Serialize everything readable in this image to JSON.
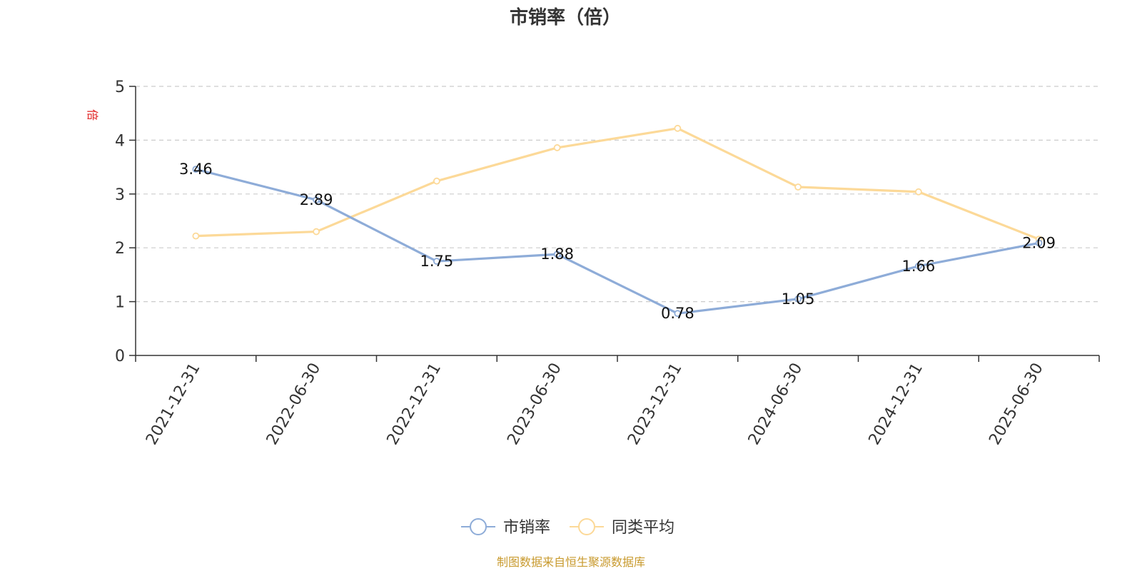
{
  "chart_data": {
    "type": "line",
    "title": "市销率（倍）",
    "ylabel": "倍",
    "xlabel": "",
    "ylim": [
      0,
      5
    ],
    "yticks": [
      0,
      1,
      2,
      3,
      4,
      5
    ],
    "grid": true,
    "legend_position": "bottom",
    "categories": [
      "2021-12-31",
      "2022-06-30",
      "2022-12-31",
      "2023-06-30",
      "2023-12-31",
      "2024-06-30",
      "2024-12-31",
      "2025-06-30"
    ],
    "series": [
      {
        "name": "市销率",
        "color": "#8eacd8",
        "values": [
          3.46,
          2.89,
          1.75,
          1.88,
          0.78,
          1.05,
          1.66,
          2.09
        ],
        "labels_shown": true
      },
      {
        "name": "同类平均",
        "color": "#fcd998",
        "values": [
          2.22,
          2.3,
          3.24,
          3.86,
          4.22,
          3.13,
          3.04,
          2.16
        ],
        "labels_shown": false
      }
    ]
  },
  "colors": {
    "axis": "#333333",
    "grid": "#cccccc",
    "unit": "#e02020",
    "source": "#c89a2e"
  },
  "footer": {
    "source_text": "制图数据来自恒生聚源数据库"
  }
}
